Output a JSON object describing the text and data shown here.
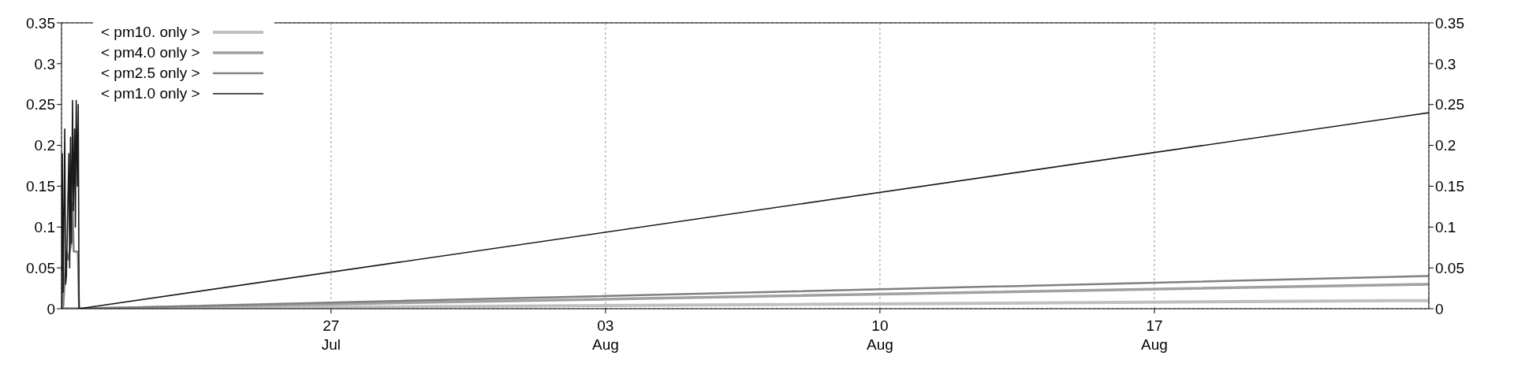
{
  "chart_data": {
    "type": "line",
    "xlim": [
      "--07-20T03:00",
      "--08-24T00:00"
    ],
    "xticks": [
      {
        "value": "--07-27",
        "label": "27\nJul"
      },
      {
        "value": "--08-03",
        "label": "03\nAug"
      },
      {
        "value": "--08-10",
        "label": "10\nAug"
      },
      {
        "value": "--08-17",
        "label": "17\nAug"
      }
    ],
    "ylim": [
      0,
      0.35
    ],
    "yticks": [
      0,
      0.05,
      0.1,
      0.15,
      0.2,
      0.25,
      0.3,
      0.35
    ],
    "y2lim": [
      0,
      0.35
    ],
    "y2ticks": [
      0,
      0.05,
      0.1,
      0.15,
      0.2,
      0.25,
      0.3,
      0.35
    ],
    "grid": true,
    "legend": "top left",
    "marker": "none",
    "line_style": "solid",
    "series": [
      {
        "name": "< pm10. only >",
        "color": "#c0c0c0",
        "x": [
          "--07-20T03:00",
          "--07-20T14:00",
          "--08-24T00:00"
        ],
        "values": [
          0,
          0,
          0.01
        ]
      },
      {
        "name": "< pm4.0 only >",
        "color": "#a0a0a0",
        "x": [
          "--07-20T03:00",
          "--07-20T14:00",
          "--08-24T00:00"
        ],
        "values": [
          0,
          0,
          0.03
        ]
      },
      {
        "name": "< pm2.5 only >",
        "color": "#808080",
        "x": [
          "--07-20T03:00",
          "--07-20T03:30",
          "--07-20T04:00",
          "--07-20T06:00",
          "--07-20T07:00",
          "--07-20T09:00",
          "--07-20T09:45",
          "--07-20T10:30",
          "--07-20T13:00",
          "--07-20T13:45",
          "--08-24T00:00"
        ],
        "values": [
          0,
          0.03,
          0,
          0.07,
          0.06,
          0.08,
          0.13,
          0.07,
          0.07,
          0,
          0.04
        ]
      },
      {
        "name": "< pm1.0 only >",
        "color": "#1a1a1a",
        "x": [
          "--07-20T03:00",
          "--07-20T03:30",
          "--07-20T04:00",
          "--07-20T05:00",
          "--07-20T05:30",
          "--07-20T06:00",
          "--07-20T07:30",
          "--07-20T08:00",
          "--07-20T08:30",
          "--07-20T09:00",
          "--07-20T09:45",
          "--07-20T10:15",
          "--07-20T11:00",
          "--07-20T11:30",
          "--07-20T12:00",
          "--07-20T12:45",
          "--07-20T13:15",
          "--07-20T13:45",
          "--08-24T00:00"
        ],
        "values": [
          0,
          0.19,
          0.02,
          0.22,
          0.03,
          0.04,
          0.19,
          0.05,
          0.21,
          0.08,
          0.255,
          0.12,
          0.22,
          0.1,
          0.255,
          0.15,
          0.25,
          0,
          0.24
        ]
      }
    ]
  }
}
